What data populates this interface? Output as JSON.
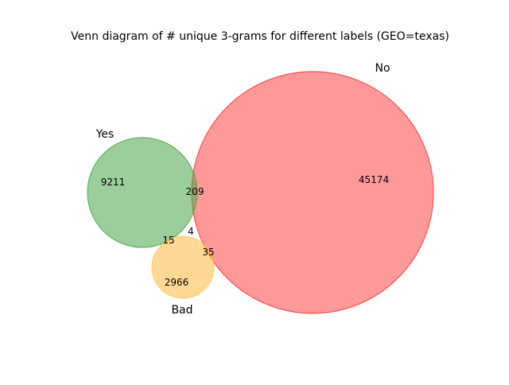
{
  "title": "Venn diagram of # unique 3-grams for different labels (GEO=texas)",
  "sets": {
    "yes": {
      "label": "Yes",
      "color": "#4aa54a"
    },
    "no": {
      "label": "No",
      "color": "#ff3333"
    },
    "bad": {
      "label": "Bad",
      "color": "#ffc04d"
    }
  },
  "regions": {
    "yes_only": "9211",
    "no_only": "45174",
    "bad_only": "2966",
    "yes_no": "209",
    "yes_bad": "15",
    "yes_no_bad": "4",
    "no_bad": "35"
  }
}
